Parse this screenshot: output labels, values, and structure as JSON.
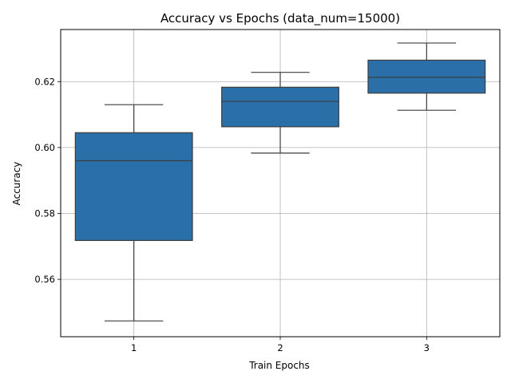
{
  "chart_data": {
    "type": "box",
    "title": "Accuracy vs Epochs (data_num=15000)",
    "xlabel": "Train Epochs",
    "ylabel": "Accuracy",
    "categories": [
      "1",
      "2",
      "3"
    ],
    "boxes": [
      {
        "category": "1",
        "whisker_low": 0.5474,
        "q1": 0.5718,
        "median": 0.596,
        "q3": 0.6045,
        "whisker_high": 0.613
      },
      {
        "category": "2",
        "whisker_low": 0.5983,
        "q1": 0.6063,
        "median": 0.614,
        "q3": 0.6183,
        "whisker_high": 0.6228
      },
      {
        "category": "3",
        "whisker_low": 0.6113,
        "q1": 0.6165,
        "median": 0.6213,
        "q3": 0.6265,
        "whisker_high": 0.6317
      }
    ],
    "ylim": [
      0.5426,
      0.6358
    ],
    "yticks": [
      0.56,
      0.58,
      0.6,
      0.62
    ],
    "ytick_labels": [
      "0.56",
      "0.58",
      "0.60",
      "0.62"
    ],
    "grid": true,
    "colors": {
      "box_fill": "#2b6fa8",
      "box_edge": "#3d3d3d",
      "grid": "#b0b0b0"
    }
  }
}
